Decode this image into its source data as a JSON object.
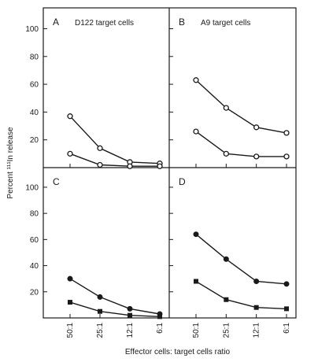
{
  "chart_data": {
    "type": "line",
    "ylabel": "Percent ¹¹¹In release",
    "xlabel": "Effector cells: target cells ratio",
    "categories": [
      "50:1",
      "25:1",
      "12:1",
      "6:1"
    ],
    "yticks": [
      "20",
      "40",
      "60",
      "80",
      "100"
    ],
    "ylim": [
      0,
      115
    ],
    "panels": [
      {
        "letter": "A",
        "title": "D122 target cells",
        "series": [
          {
            "marker": "open-circle",
            "values": [
              37,
              14,
              4,
              3
            ]
          },
          {
            "marker": "open-circle",
            "values": [
              10,
              2,
              1,
              1
            ]
          }
        ]
      },
      {
        "letter": "B",
        "title": "A9 target cells",
        "series": [
          {
            "marker": "open-circle",
            "values": [
              63,
              43,
              29,
              25
            ]
          },
          {
            "marker": "open-circle",
            "values": [
              26,
              10,
              8,
              8
            ]
          }
        ]
      },
      {
        "letter": "C",
        "title": "",
        "series": [
          {
            "marker": "filled-circle",
            "values": [
              30,
              16,
              7,
              3
            ]
          },
          {
            "marker": "filled-square",
            "values": [
              12,
              5,
              2,
              1
            ]
          }
        ]
      },
      {
        "letter": "D",
        "title": "",
        "series": [
          {
            "marker": "filled-circle",
            "values": [
              64,
              45,
              28,
              26
            ]
          },
          {
            "marker": "filled-square",
            "values": [
              28,
              14,
              8,
              7
            ]
          }
        ]
      }
    ]
  }
}
